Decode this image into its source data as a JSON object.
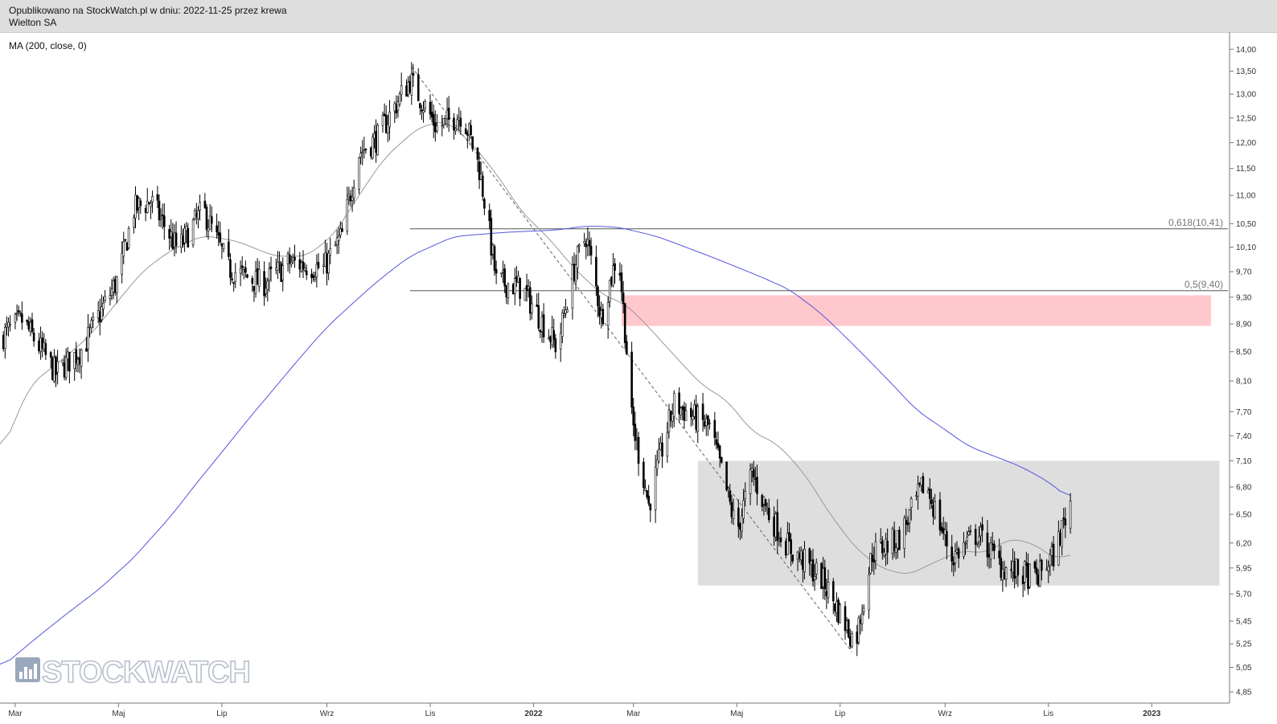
{
  "header": {
    "published": "Opublikowano na StockWatch.pl w dniu: 2022-11-25 przez krewa",
    "instrument": "Wielton SA"
  },
  "indicator_label": "MA (200, close, 0)",
  "watermark": {
    "text": "STOCKWATCH",
    "icon": "bar-chart-icon"
  },
  "chart_data": {
    "type": "candlestick",
    "x_tick_labels": [
      "Mar",
      "Maj",
      "Lip",
      "Wrz",
      "Lis",
      "2022",
      "Mar",
      "Maj",
      "Lip",
      "Wrz",
      "Lis",
      "2023"
    ],
    "y_tick_labels": [
      "14,00",
      "13,50",
      "13,00",
      "12,50",
      "12,00",
      "11,50",
      "11,00",
      "10,50",
      "10,10",
      "9,70",
      "9,30",
      "8,90",
      "8,50",
      "8,10",
      "7,70",
      "7,40",
      "7,10",
      "6,80",
      "6,50",
      "6,20",
      "5,95",
      "5,70",
      "5,45",
      "5,25",
      "5,05",
      "4,85"
    ],
    "y_scale": "log",
    "ylim": [
      4.78,
      14.4
    ],
    "date_range": [
      "2021-02-20",
      "2023-02-15"
    ],
    "fib_levels": [
      {
        "label": "0,618(10,41)",
        "value": 10.41,
        "start": "2021-10-20",
        "end": "2023-02-15"
      },
      {
        "label": "0,5(9,40)",
        "value": 9.4,
        "start": "2021-10-20",
        "end": "2023-02-15"
      }
    ],
    "zones": [
      {
        "name": "resistance-zone",
        "color": "#ffc8cc",
        "start": "2022-02-22",
        "end": "2023-02-05",
        "low": 8.87,
        "high": 9.33
      },
      {
        "name": "consolidation-zone",
        "color": "#dedede",
        "start": "2022-04-08",
        "end": "2023-02-10",
        "low": 5.78,
        "high": 7.1
      }
    ],
    "trendline": {
      "from": {
        "date": "2021-10-21",
        "value": 13.6
      },
      "to": {
        "date": "2022-07-08",
        "value": 5.18
      }
    },
    "ma200": {
      "color": "#5555dd",
      "points": [
        [
          "2021-02-20",
          5.04
        ],
        [
          "2021-03-20",
          5.38
        ],
        [
          "2021-04-20",
          5.75
        ],
        [
          "2021-05-10",
          6.05
        ],
        [
          "2021-06-01",
          6.48
        ],
        [
          "2021-07-01",
          7.2
        ],
        [
          "2021-08-01",
          8.0
        ],
        [
          "2021-09-01",
          8.85
        ],
        [
          "2021-10-01",
          9.55
        ],
        [
          "2021-10-20",
          9.95
        ],
        [
          "2021-11-15",
          10.28
        ],
        [
          "2021-12-15",
          10.35
        ],
        [
          "2022-01-15",
          10.39
        ],
        [
          "2022-02-01",
          10.46
        ],
        [
          "2022-02-20",
          10.44
        ],
        [
          "2022-03-15",
          10.28
        ],
        [
          "2022-04-15",
          9.95
        ],
        [
          "2022-05-15",
          9.62
        ],
        [
          "2022-06-01",
          9.42
        ],
        [
          "2022-06-20",
          9.05
        ],
        [
          "2022-07-15",
          8.45
        ],
        [
          "2022-08-15",
          7.72
        ],
        [
          "2022-09-15",
          7.27
        ],
        [
          "2022-10-15",
          7.04
        ],
        [
          "2022-11-01",
          6.86
        ],
        [
          "2022-11-14",
          6.66
        ]
      ]
    },
    "ma_short": {
      "color": "#999999",
      "points": [
        [
          "2021-02-20",
          7.15
        ],
        [
          "2021-03-10",
          8.05
        ],
        [
          "2021-04-01",
          8.45
        ],
        [
          "2021-04-15",
          8.75
        ],
        [
          "2021-05-01",
          9.25
        ],
        [
          "2021-05-15",
          9.7
        ],
        [
          "2021-06-01",
          10.05
        ],
        [
          "2021-06-20",
          10.3
        ],
        [
          "2021-07-10",
          10.2
        ],
        [
          "2021-08-01",
          9.95
        ],
        [
          "2021-08-20",
          9.95
        ],
        [
          "2021-09-05",
          10.3
        ],
        [
          "2021-09-20",
          11.0
        ],
        [
          "2021-10-05",
          11.7
        ],
        [
          "2021-10-25",
          12.3
        ],
        [
          "2021-11-10",
          12.45
        ],
        [
          "2021-11-25",
          12.0
        ],
        [
          "2021-12-10",
          11.4
        ],
        [
          "2021-12-25",
          10.7
        ],
        [
          "2022-01-10",
          10.25
        ],
        [
          "2022-01-25",
          9.75
        ],
        [
          "2022-02-10",
          9.35
        ],
        [
          "2022-02-25",
          9.18
        ],
        [
          "2022-03-10",
          8.85
        ],
        [
          "2022-03-25",
          8.45
        ],
        [
          "2022-04-10",
          8.05
        ],
        [
          "2022-04-25",
          7.85
        ],
        [
          "2022-05-10",
          7.45
        ],
        [
          "2022-05-25",
          7.3
        ],
        [
          "2022-06-10",
          6.95
        ],
        [
          "2022-06-25",
          6.5
        ],
        [
          "2022-07-10",
          6.15
        ],
        [
          "2022-07-25",
          5.95
        ],
        [
          "2022-08-10",
          5.88
        ],
        [
          "2022-08-25",
          6.0
        ],
        [
          "2022-09-10",
          6.12
        ],
        [
          "2022-09-25",
          6.1
        ],
        [
          "2022-10-10",
          6.25
        ],
        [
          "2022-10-25",
          6.18
        ],
        [
          "2022-11-05",
          6.03
        ],
        [
          "2022-11-14",
          6.1
        ]
      ]
    },
    "price_anchors": [
      [
        "2021-02-20",
        8.7
      ],
      [
        "2021-03-05",
        8.95
      ],
      [
        "2021-03-25",
        8.2
      ],
      [
        "2021-04-10",
        8.55
      ],
      [
        "2021-05-01",
        9.6
      ],
      [
        "2021-05-10",
        10.75
      ],
      [
        "2021-05-20",
        10.9
      ],
      [
        "2021-06-05",
        10.05
      ],
      [
        "2021-06-20",
        10.75
      ],
      [
        "2021-07-05",
        9.75
      ],
      [
        "2021-07-25",
        9.5
      ],
      [
        "2021-08-10",
        9.85
      ],
      [
        "2021-08-30",
        9.75
      ],
      [
        "2021-09-10",
        10.3
      ],
      [
        "2021-09-20",
        11.8
      ],
      [
        "2021-10-01",
        12.1
      ],
      [
        "2021-10-20",
        13.3
      ],
      [
        "2021-11-05",
        12.3
      ],
      [
        "2021-11-20",
        12.6
      ],
      [
        "2021-11-30",
        11.5
      ],
      [
        "2021-12-10",
        9.55
      ],
      [
        "2021-12-25",
        9.45
      ],
      [
        "2022-01-15",
        8.55
      ],
      [
        "2022-01-25",
        9.75
      ],
      [
        "2022-02-01",
        10.3
      ],
      [
        "2022-02-10",
        9.0
      ],
      [
        "2022-02-20",
        10.05
      ],
      [
        "2022-02-28",
        7.6
      ],
      [
        "2022-03-10",
        6.6
      ],
      [
        "2022-03-25",
        7.8
      ],
      [
        "2022-04-15",
        7.5
      ],
      [
        "2022-05-01",
        6.3
      ],
      [
        "2022-05-10",
        6.95
      ],
      [
        "2022-05-20",
        6.5
      ],
      [
        "2022-06-01",
        6.15
      ],
      [
        "2022-06-20",
        5.85
      ],
      [
        "2022-07-10",
        5.25
      ],
      [
        "2022-07-20",
        6.1
      ],
      [
        "2022-08-05",
        6.25
      ],
      [
        "2022-08-20",
        6.85
      ],
      [
        "2022-09-05",
        6.05
      ],
      [
        "2022-09-20",
        6.3
      ],
      [
        "2022-10-05",
        5.95
      ],
      [
        "2022-10-25",
        5.85
      ],
      [
        "2022-11-05",
        6.1
      ],
      [
        "2022-11-14",
        6.65
      ]
    ]
  }
}
